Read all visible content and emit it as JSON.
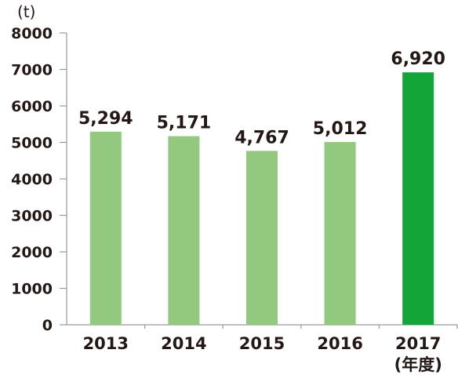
{
  "chart_data": {
    "type": "bar",
    "categories": [
      "2013",
      "2014",
      "2015",
      "2016",
      "2017"
    ],
    "values": [
      5294,
      5171,
      4767,
      5012,
      6920
    ],
    "data_labels": [
      "5,294",
      "5,171",
      "4,767",
      "5,012",
      "6,920"
    ],
    "title": "",
    "ylabel": "(t)",
    "xlabel": "(年度)",
    "ylim": [
      0,
      8000
    ],
    "yticks": [
      0,
      1000,
      2000,
      3000,
      4000,
      5000,
      6000,
      7000,
      8000
    ],
    "grid": false,
    "bar_colors": [
      "#93c87f",
      "#93c87f",
      "#93c87f",
      "#93c87f",
      "#13a538"
    ]
  }
}
